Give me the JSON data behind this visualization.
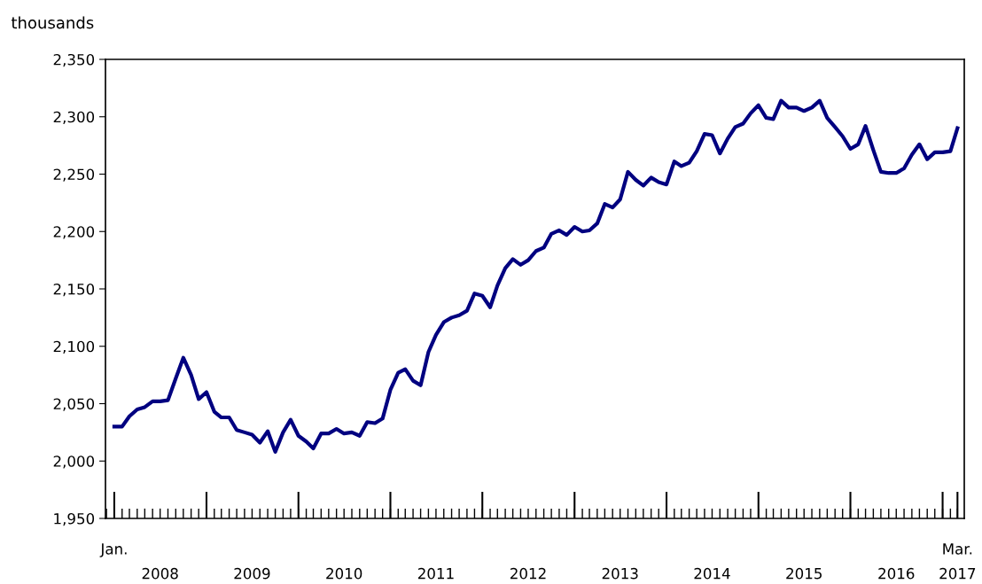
{
  "chart_data": {
    "type": "line",
    "ylabel": "thousands",
    "x": [
      "2008-01",
      "2008-02",
      "2008-03",
      "2008-04",
      "2008-05",
      "2008-06",
      "2008-07",
      "2008-08",
      "2008-09",
      "2008-10",
      "2008-11",
      "2008-12",
      "2009-01",
      "2009-02",
      "2009-03",
      "2009-04",
      "2009-05",
      "2009-06",
      "2009-07",
      "2009-08",
      "2009-09",
      "2009-10",
      "2009-11",
      "2009-12",
      "2010-01",
      "2010-02",
      "2010-03",
      "2010-04",
      "2010-05",
      "2010-06",
      "2010-07",
      "2010-08",
      "2010-09",
      "2010-10",
      "2010-11",
      "2010-12",
      "2011-01",
      "2011-02",
      "2011-03",
      "2011-04",
      "2011-05",
      "2011-06",
      "2011-07",
      "2011-08",
      "2011-09",
      "2011-10",
      "2011-11",
      "2011-12",
      "2012-01",
      "2012-02",
      "2012-03",
      "2012-04",
      "2012-05",
      "2012-06",
      "2012-07",
      "2012-08",
      "2012-09",
      "2012-10",
      "2012-11",
      "2012-12",
      "2013-01",
      "2013-02",
      "2013-03",
      "2013-04",
      "2013-05",
      "2013-06",
      "2013-07",
      "2013-08",
      "2013-09",
      "2013-10",
      "2013-11",
      "2013-12",
      "2014-01",
      "2014-02",
      "2014-03",
      "2014-04",
      "2014-05",
      "2014-06",
      "2014-07",
      "2014-08",
      "2014-09",
      "2014-10",
      "2014-11",
      "2014-12",
      "2015-01",
      "2015-02",
      "2015-03",
      "2015-04",
      "2015-05",
      "2015-06",
      "2015-07",
      "2015-08",
      "2015-09",
      "2015-10",
      "2015-11",
      "2015-12",
      "2016-01",
      "2016-02",
      "2016-03",
      "2016-04",
      "2016-05",
      "2016-06",
      "2016-07",
      "2016-08",
      "2016-09",
      "2016-10",
      "2016-11",
      "2016-12",
      "2017-01",
      "2017-02",
      "2017-03"
    ],
    "series": [
      {
        "color": "#000080",
        "values": [
          2030,
          2030,
          2039,
          2045,
          2047,
          2052,
          2052,
          2053,
          2072,
          2090,
          2075,
          2054,
          2060,
          2043,
          2038,
          2038,
          2027,
          2025,
          2023,
          2016,
          2026,
          2008,
          2025,
          2036,
          2022,
          2017,
          2011,
          2024,
          2024,
          2028,
          2024,
          2025,
          2022,
          2034,
          2033,
          2037,
          2062,
          2077,
          2080,
          2070,
          2066,
          2095,
          2110,
          2121,
          2125,
          2127,
          2131,
          2146,
          2144,
          2134,
          2153,
          2168,
          2176,
          2171,
          2175,
          2183,
          2186,
          2198,
          2201,
          2197,
          2204,
          2200,
          2201,
          2207,
          2224,
          2221,
          2228,
          2252,
          2245,
          2240,
          2247,
          2243,
          2241,
          2261,
          2257,
          2260,
          2270,
          2285,
          2284,
          2268,
          2281,
          2291,
          2294,
          2303,
          2310,
          2299,
          2298,
          2314,
          2308,
          2308,
          2305,
          2308,
          2314,
          2299,
          2291,
          2283,
          2272,
          2276,
          2292,
          2271,
          2252,
          2251,
          2251,
          2255,
          2267,
          2276,
          2263,
          2269,
          2269,
          2270,
          2290
        ]
      }
    ],
    "xlim": [
      "2007-11-27",
      "2017-03-28"
    ],
    "xticks": [
      {
        "value": "2008-07",
        "label": "2008"
      },
      {
        "value": "2009-07",
        "label": "2009"
      },
      {
        "value": "2010-07",
        "label": "2010"
      },
      {
        "value": "2011-07",
        "label": "2011"
      },
      {
        "value": "2012-07",
        "label": "2012"
      },
      {
        "value": "2013-07",
        "label": "2013"
      },
      {
        "value": "2014-07",
        "label": "2014"
      },
      {
        "value": "2015-07",
        "label": "2015"
      },
      {
        "value": "2016-07",
        "label": "2016"
      },
      {
        "value": "2017-03",
        "label": "2017"
      }
    ],
    "annotations": [
      "Jan.",
      "Mar."
    ],
    "ylim": [
      1950,
      2350
    ],
    "yticks": [
      {
        "value": 1950,
        "label": "1,950"
      },
      {
        "value": 2000,
        "label": "2,000"
      },
      {
        "value": 2050,
        "label": "2,050"
      },
      {
        "value": 2100,
        "label": "2,100"
      },
      {
        "value": 2150,
        "label": "2,150"
      },
      {
        "value": 2200,
        "label": "2,200"
      },
      {
        "value": 2250,
        "label": "2,250"
      },
      {
        "value": 2300,
        "label": "2,300"
      },
      {
        "value": 2350,
        "label": "2,350"
      }
    ],
    "grid": false,
    "legend": false,
    "marker": "none",
    "line_style": "solid"
  }
}
